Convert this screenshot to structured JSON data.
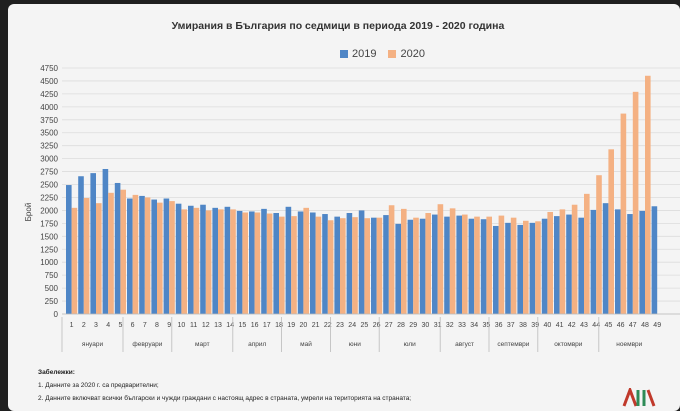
{
  "chart_data": {
    "type": "bar",
    "title": "Умирания в България по седмици в периода 2019 - 2020 година",
    "ylabel": "Брой",
    "ylim": [
      0,
      4750
    ],
    "yticks": [
      0,
      250,
      500,
      750,
      1000,
      1250,
      1500,
      1750,
      2000,
      2250,
      2500,
      2750,
      3000,
      3250,
      3500,
      3750,
      4000,
      4250,
      4500,
      4750
    ],
    "grid": "horizontal",
    "legend_position": "top",
    "categories": [
      "1",
      "2",
      "3",
      "4",
      "5",
      "6",
      "7",
      "8",
      "9",
      "10",
      "11",
      "12",
      "13",
      "14",
      "15",
      "16",
      "17",
      "18",
      "19",
      "20",
      "21",
      "22",
      "23",
      "24",
      "25",
      "26",
      "27",
      "28",
      "29",
      "30",
      "31",
      "32",
      "33",
      "34",
      "35",
      "36",
      "37",
      "38",
      "39",
      "40",
      "41",
      "42",
      "43",
      "44",
      "45",
      "46",
      "47",
      "48",
      "49"
    ],
    "series": [
      {
        "name": "2019",
        "color": "#4f86c6",
        "values": [
          2490,
          2660,
          2720,
          2800,
          2530,
          2230,
          2280,
          2210,
          2230,
          2130,
          2090,
          2110,
          2050,
          2070,
          1990,
          1980,
          2030,
          1950,
          2070,
          1980,
          1960,
          1930,
          1880,
          1950,
          2000,
          1860,
          1910,
          1740,
          1820,
          1840,
          1920,
          1880,
          1900,
          1840,
          1830,
          1700,
          1760,
          1720,
          1760,
          1840,
          1890,
          1920,
          1860,
          2010,
          2140,
          2020,
          1930,
          1990,
          2080
        ]
      },
      {
        "name": "2020",
        "color": "#f4b183",
        "values": [
          2050,
          2240,
          2140,
          2340,
          2400,
          2300,
          2250,
          2150,
          2180,
          2020,
          2050,
          2000,
          2020,
          2020,
          1960,
          1960,
          1940,
          1880,
          1890,
          2050,
          1880,
          1810,
          1850,
          1870,
          1850,
          1860,
          2100,
          2030,
          1860,
          1950,
          2120,
          2040,
          1920,
          1880,
          1880,
          1900,
          1860,
          1800,
          1790,
          1970,
          2020,
          2110,
          2320,
          2680,
          3180,
          3870,
          4290,
          4600,
          null
        ]
      }
    ],
    "month_labels": [
      {
        "label": "януари",
        "from": 1,
        "to": 5
      },
      {
        "label": "февруари",
        "from": 6,
        "to": 9
      },
      {
        "label": "март",
        "from": 10,
        "to": 14
      },
      {
        "label": "април",
        "from": 15,
        "to": 18
      },
      {
        "label": "май",
        "from": 19,
        "to": 22
      },
      {
        "label": "юни",
        "from": 23,
        "to": 26
      },
      {
        "label": "юли",
        "from": 27,
        "to": 31
      },
      {
        "label": "август",
        "from": 32,
        "to": 35
      },
      {
        "label": "септември",
        "from": 36,
        "to": 39
      },
      {
        "label": "октомври",
        "from": 40,
        "to": 44
      },
      {
        "label": "ноември",
        "from": 45,
        "to": 49
      }
    ]
  },
  "notes": {
    "heading": "Забележки:",
    "items": [
      "1. Данните за 2020 г. са предварителни;",
      "2. Данните включват всички български и чужди граждани с настоящ адрес в страната, умрели на територията на страната;"
    ]
  },
  "logo": {
    "colors": [
      "#c0392b",
      "#2e8b57"
    ]
  }
}
